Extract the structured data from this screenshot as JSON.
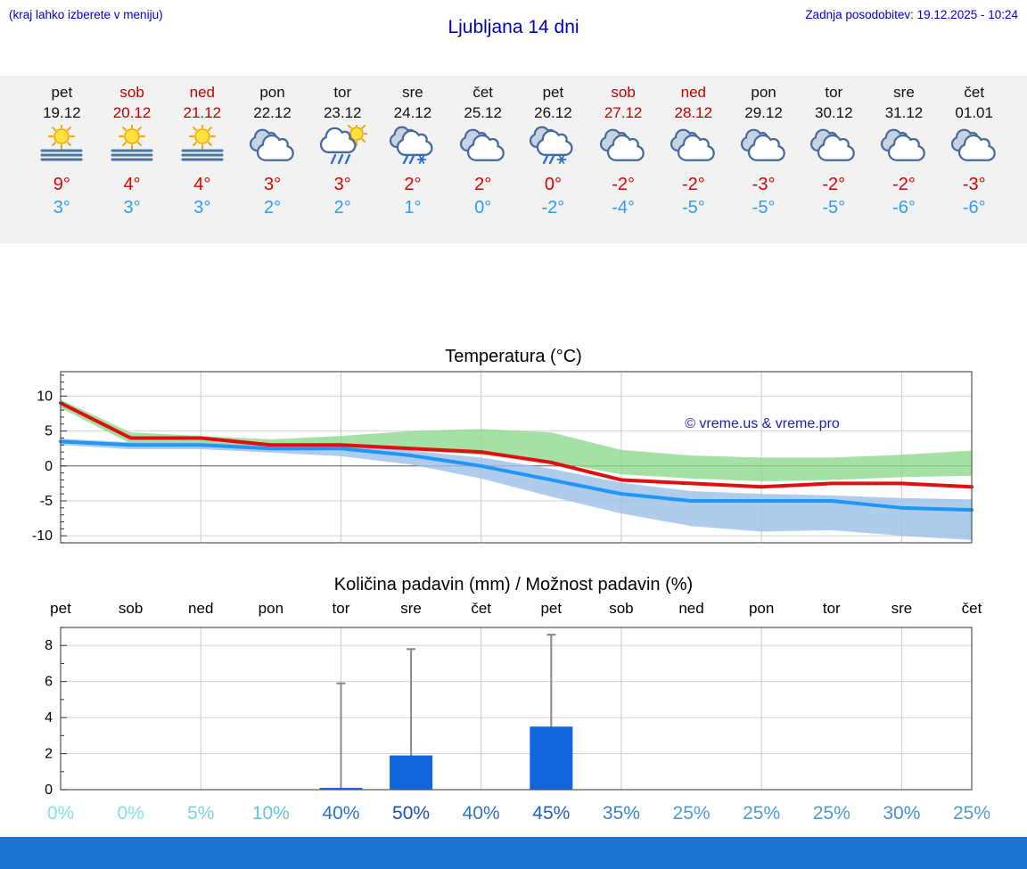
{
  "header": {
    "note": "(kraj lahko izberete v meniju)",
    "title": "Ljubljana 14 dni",
    "updated": "Zadnja posodobitev: 19.12.2025 - 10:24"
  },
  "colors": {
    "accent_blue": "#0000cc",
    "weekend_red": "#c00000",
    "high_red": "#dd0000",
    "low_blue": "#2e9df0",
    "bar_blue": "#1166dd",
    "footer_blue": "#1b75d1"
  },
  "forecast": {
    "days": [
      {
        "name": "pet",
        "date": "19.12",
        "weekend": false,
        "icon": "sun_fog",
        "high": "9°",
        "low": "3°"
      },
      {
        "name": "sob",
        "date": "20.12",
        "weekend": true,
        "icon": "sun_fog",
        "high": "4°",
        "low": "3°"
      },
      {
        "name": "ned",
        "date": "21.12",
        "weekend": true,
        "icon": "sun_fog",
        "high": "4°",
        "low": "3°"
      },
      {
        "name": "pon",
        "date": "22.12",
        "weekend": false,
        "icon": "cloudy",
        "high": "3°",
        "low": "2°"
      },
      {
        "name": "tor",
        "date": "23.12",
        "weekend": false,
        "icon": "sun_shower",
        "high": "3°",
        "low": "2°"
      },
      {
        "name": "sre",
        "date": "24.12",
        "weekend": false,
        "icon": "sleet",
        "high": "2°",
        "low": "1°"
      },
      {
        "name": "čet",
        "date": "25.12",
        "weekend": false,
        "icon": "cloudy",
        "high": "2°",
        "low": "0°"
      },
      {
        "name": "pet",
        "date": "26.12",
        "weekend": false,
        "icon": "sleet",
        "high": "0°",
        "low": "-2°"
      },
      {
        "name": "sob",
        "date": "27.12",
        "weekend": true,
        "icon": "cloudy",
        "high": "-2°",
        "low": "-4°"
      },
      {
        "name": "ned",
        "date": "28.12",
        "weekend": true,
        "icon": "cloudy",
        "high": "-2°",
        "low": "-5°"
      },
      {
        "name": "pon",
        "date": "29.12",
        "weekend": false,
        "icon": "cloudy",
        "high": "-3°",
        "low": "-5°"
      },
      {
        "name": "tor",
        "date": "30.12",
        "weekend": false,
        "icon": "cloudy",
        "high": "-2°",
        "low": "-5°"
      },
      {
        "name": "sre",
        "date": "31.12",
        "weekend": false,
        "icon": "cloudy",
        "high": "-2°",
        "low": "-6°"
      },
      {
        "name": "čet",
        "date": "01.01",
        "weekend": false,
        "icon": "cloudy",
        "high": "-3°",
        "low": "-6°"
      }
    ]
  },
  "chart_data": [
    {
      "type": "line",
      "title": "Temperatura (°C)",
      "categories": [
        "pet",
        "sob",
        "ned",
        "pon",
        "tor",
        "sre",
        "čet",
        "pet",
        "sob",
        "ned",
        "pon",
        "tor",
        "sre",
        "čet"
      ],
      "ylim": [
        -11,
        13.5
      ],
      "yticks": [
        -10,
        -5,
        0,
        5,
        10
      ],
      "grid": true,
      "watermark": "© vreme.us & vreme.pro",
      "series": [
        {
          "name": "max-temperatura",
          "color": "#e01010",
          "values": [
            9,
            4,
            4,
            3,
            3,
            2.5,
            2,
            0.5,
            -2,
            -2.5,
            -3,
            -2.5,
            -2.5,
            -3
          ]
        },
        {
          "name": "min-temperatura",
          "color": "#1f97f5",
          "values": [
            3.5,
            3,
            3,
            2.5,
            2.5,
            1.5,
            0,
            -2,
            -4,
            -5,
            -5,
            -5,
            -6,
            -6.3
          ]
        }
      ],
      "bands": [
        {
          "name": "max-razpon",
          "color": "#8fd98f",
          "upper": [
            9.5,
            4.8,
            4.3,
            3.8,
            4.3,
            5.0,
            5.3,
            4.8,
            2.3,
            1.5,
            1.2,
            1.2,
            1.6,
            2.2
          ],
          "lower": [
            8.3,
            3.2,
            3.2,
            2.7,
            2.6,
            2.2,
            1.6,
            0.6,
            -1.2,
            -1.8,
            -2.2,
            -2.0,
            -1.6,
            -1.4
          ]
        },
        {
          "name": "min-razpon",
          "color": "#9cbfe8",
          "upper": [
            3.9,
            3.4,
            3.4,
            2.9,
            2.9,
            2.2,
            1.2,
            -0.4,
            -2.4,
            -3.6,
            -4.0,
            -4.2,
            -4.6,
            -4.8
          ],
          "lower": [
            3.0,
            2.4,
            2.4,
            1.9,
            1.4,
            0.2,
            -1.8,
            -4.4,
            -6.8,
            -8.6,
            -9.4,
            -9.2,
            -10.0,
            -10.6
          ]
        }
      ]
    },
    {
      "type": "bar",
      "title": "Količina padavin (mm) / Možnost padavin (%)",
      "categories": [
        "pet",
        "sob",
        "ned",
        "pon",
        "tor",
        "sre",
        "čet",
        "pet",
        "sob",
        "ned",
        "pon",
        "tor",
        "sre",
        "čet"
      ],
      "values_mm": [
        0,
        0,
        0,
        0,
        0.1,
        1.9,
        0,
        3.5,
        0,
        0,
        0,
        0,
        0,
        0
      ],
      "whisker_max_mm": [
        0,
        0,
        0,
        0,
        5.9,
        7.8,
        0,
        8.6,
        0,
        0,
        0,
        0,
        0,
        0
      ],
      "probability_percent": [
        0,
        0,
        5,
        10,
        40,
        50,
        40,
        45,
        35,
        25,
        25,
        25,
        30,
        25
      ],
      "percent_colors": [
        "#83e0ea",
        "#83e0ea",
        "#79d4e6",
        "#65c3e0",
        "#2e72c8",
        "#1a4fb0",
        "#2e72c8",
        "#2360bc",
        "#3a80cc",
        "#4f9ad6",
        "#4f9ad6",
        "#4f9ad6",
        "#4690d2",
        "#4f9ad6"
      ],
      "ylim": [
        0,
        9
      ],
      "yticks": [
        0,
        2,
        4,
        6,
        8
      ],
      "bar_color": "#1166dd",
      "grid": true
    }
  ]
}
